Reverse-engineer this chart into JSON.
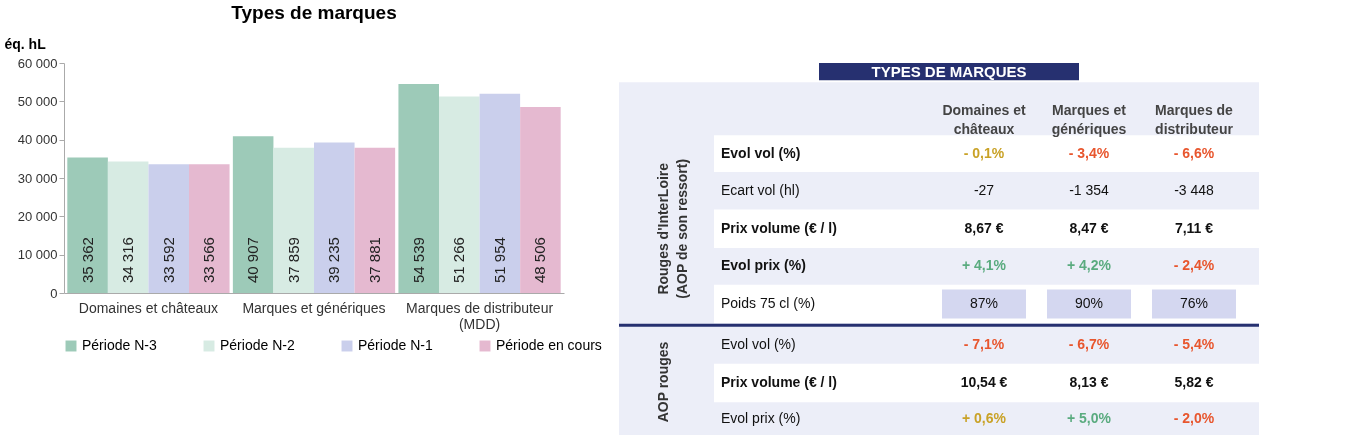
{
  "chart_data": [
    {
      "type": "bar",
      "title": "Types de marques",
      "ylabel": "éq. hL",
      "categories": [
        "Domaines et châteaux",
        "Marques et génériques",
        "Marques de distributeur (MDD)"
      ],
      "series": [
        {
          "name": "Période N-3",
          "color": "#9dcab8",
          "values": [
            35362,
            40907,
            54539
          ],
          "value_labels": [
            "35 362",
            "40 907",
            "54 539"
          ]
        },
        {
          "name": "Période N-2",
          "color": "#d7ebe3",
          "values": [
            34316,
            37859,
            51266
          ],
          "value_labels": [
            "34 316",
            "37 859",
            "51 266"
          ]
        },
        {
          "name": "Période N-1",
          "color": "#cacfec",
          "values": [
            33592,
            39235,
            51954
          ],
          "value_labels": [
            "33 592",
            "39 235",
            "51 954"
          ]
        },
        {
          "name": "Période en cours",
          "color": "#e5b9d0",
          "values": [
            33566,
            37881,
            48506
          ],
          "value_labels": [
            "33 566",
            "37 881",
            "48 506"
          ]
        }
      ],
      "ylim": [
        0,
        60000
      ],
      "yticks": [
        0,
        {
          "value": 10000,
          "label": "10 000"
        },
        {
          "value": 20000,
          "label": "20 000"
        },
        {
          "value": 30000,
          "label": "30 000"
        },
        {
          "value": 40000,
          "label": "40 000"
        },
        {
          "value": 50000,
          "label": "50 000"
        },
        {
          "value": 60000,
          "label": "60 000"
        }
      ],
      "grid": false,
      "legend": "bottom"
    },
    {
      "type": "other",
      "title": "TYPES DE MARQUES",
      "annotations": [
        "Rouges d'InterLoire (AOP de son ressort)",
        "AOP rouges",
        "Domaines et châteaux",
        "Marques et génériques",
        "Marques de distributeur",
        "Evol vol (%)",
        "- 0,1%",
        "- 3,4%",
        "- 6,6%",
        "Ecart vol (hl)",
        "-27",
        "-1 354",
        "-3 448",
        "Prix volume (€ / l)",
        "8,67 €",
        "8,47 €",
        "7,11 €",
        "Evol prix (%)",
        "+ 4,1%",
        "+ 4,2%",
        "- 2,4%",
        "Poids 75 cl (%)",
        "87%",
        "90%",
        "76%",
        "Evol vol (%)",
        "- 7,1%",
        "- 6,7%",
        "- 5,4%",
        "Prix volume (€ / l)",
        "10,54 €",
        "8,13 €",
        "5,82 €",
        "Evol prix (%)",
        "+ 0,6%",
        "+ 5,0%",
        "- 2,0%"
      ]
    }
  ]
}
